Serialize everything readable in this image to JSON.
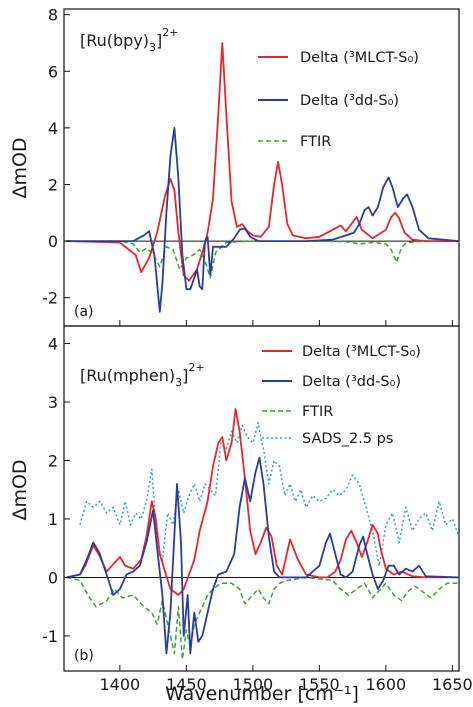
{
  "figure": {
    "xlabel": "Wavenumber [cm⁻¹]",
    "xticks": [
      "1400",
      "1450",
      "1500",
      "1550",
      "1600",
      "1650"
    ]
  },
  "chart_data": [
    {
      "type": "line",
      "panel_label": "(a)",
      "complex_label": "[Ru(bpy)₃]²⁺",
      "ylabel": "ΔmOD",
      "xlim": [
        1358,
        1655
      ],
      "ylim": [
        -3,
        8.2
      ],
      "yticks": [
        "-2",
        "0",
        "2",
        "4",
        "6",
        "8"
      ],
      "zero_line": true,
      "legend_position": "top-right",
      "series": [
        {
          "name": "Delta (³MLCT-S₀)",
          "color": "#e8262a",
          "style": "solid",
          "x": [
            1360,
            1400,
            1412,
            1416,
            1422,
            1428,
            1434,
            1438,
            1441,
            1444,
            1448,
            1452,
            1458,
            1462,
            1466,
            1470,
            1474,
            1477,
            1480,
            1484,
            1488,
            1492,
            1496,
            1500,
            1506,
            1512,
            1516,
            1519,
            1522,
            1526,
            1530,
            1540,
            1550,
            1560,
            1566,
            1570,
            1574,
            1578,
            1582,
            1590,
            1600,
            1604,
            1607,
            1610,
            1614,
            1620,
            1630,
            1655
          ],
          "y": [
            0,
            -0.05,
            -0.5,
            -1.1,
            -0.6,
            0.3,
            1.6,
            2.2,
            1.8,
            0.3,
            -1.2,
            -1.4,
            -1.0,
            -0.4,
            0.3,
            1.5,
            4.5,
            7.0,
            4.5,
            1.4,
            0.5,
            0.6,
            0.35,
            0.2,
            0.15,
            0.5,
            2.0,
            2.8,
            2.0,
            0.6,
            0.2,
            0.1,
            0.15,
            0.4,
            0.55,
            0.35,
            0.6,
            0.85,
            0.4,
            0.1,
            0.4,
            0.85,
            1.0,
            0.8,
            0.3,
            0.05,
            0,
            0
          ]
        },
        {
          "name": "Delta (³dd-S₀)",
          "color": "#2b3d9c",
          "style": "solid",
          "x": [
            1360,
            1410,
            1418,
            1422,
            1426,
            1430,
            1432,
            1435,
            1438,
            1441,
            1444,
            1447,
            1450,
            1453,
            1456,
            1458,
            1460,
            1462,
            1464,
            1466,
            1468,
            1470,
            1480,
            1486,
            1490,
            1494,
            1498,
            1504,
            1540,
            1560,
            1570,
            1576,
            1580,
            1584,
            1587,
            1590,
            1594,
            1598,
            1602,
            1605,
            1609,
            1613,
            1616,
            1620,
            1625,
            1632,
            1655
          ],
          "y": [
            0,
            0,
            0.2,
            0.35,
            -0.5,
            -2.5,
            -1.5,
            1.0,
            3.0,
            4.0,
            2.2,
            -0.5,
            -1.7,
            -1.7,
            -1.3,
            -1.0,
            -1.6,
            -1.7,
            0,
            0.15,
            -1.2,
            -0.2,
            -0.2,
            0.1,
            0.4,
            0.45,
            0.15,
            0,
            0,
            0.05,
            0.2,
            0.3,
            0.6,
            1.1,
            1.2,
            0.9,
            1.2,
            1.9,
            2.25,
            1.9,
            1.2,
            1.5,
            1.65,
            1.2,
            0.4,
            0.1,
            0
          ]
        },
        {
          "name": "FTIR",
          "color": "#3aa535",
          "style": "dashed",
          "x": [
            1360,
            1400,
            1410,
            1415,
            1420,
            1425,
            1430,
            1435,
            1440,
            1445,
            1450,
            1455,
            1460,
            1464,
            1468,
            1472,
            1480,
            1490,
            1500,
            1540,
            1570,
            1580,
            1590,
            1600,
            1604,
            1608,
            1612,
            1616,
            1630,
            1655
          ],
          "y": [
            0,
            0,
            -0.1,
            -0.4,
            -0.25,
            -0.45,
            -0.9,
            -0.2,
            -0.3,
            -1.0,
            -0.6,
            -0.5,
            -0.3,
            -0.7,
            -1.3,
            -0.4,
            -0.05,
            -0.02,
            0,
            0,
            -0.02,
            -0.1,
            -0.05,
            -0.1,
            -0.3,
            -0.75,
            -0.2,
            -0.05,
            0,
            0
          ]
        }
      ]
    },
    {
      "type": "line",
      "panel_label": "(b)",
      "complex_label": "[Ru(mphen)₃]²⁺",
      "ylabel": "ΔmOD",
      "xlim": [
        1358,
        1655
      ],
      "ylim": [
        -1.6,
        4.3
      ],
      "yticks": [
        "-1",
        "0",
        "1",
        "2",
        "3",
        "4"
      ],
      "zero_line": true,
      "legend_position": "top-right",
      "series": [
        {
          "name": "Delta (³MLCT-S₀)",
          "color": "#e8262a",
          "style": "solid",
          "x": [
            1360,
            1370,
            1374,
            1380,
            1384,
            1390,
            1396,
            1400,
            1404,
            1410,
            1416,
            1420,
            1424,
            1427,
            1430,
            1434,
            1438,
            1444,
            1448,
            1452,
            1456,
            1460,
            1466,
            1470,
            1474,
            1477,
            1480,
            1484,
            1487,
            1490,
            1494,
            1498,
            1502,
            1506,
            1510,
            1514,
            1518,
            1522,
            1528,
            1534,
            1540,
            1550,
            1556,
            1562,
            1566,
            1570,
            1574,
            1578,
            1582,
            1586,
            1590,
            1594,
            1596,
            1600,
            1606,
            1612,
            1620,
            1630,
            1655
          ],
          "y": [
            0,
            0.05,
            0.2,
            0.55,
            0.4,
            0.1,
            0.25,
            0.35,
            0.2,
            0.15,
            0.3,
            0.7,
            1.3,
            1.0,
            0.4,
            0.1,
            -0.2,
            -0.3,
            -0.2,
            0.05,
            0.3,
            0.8,
            1.3,
            1.9,
            2.3,
            2.4,
            2.0,
            2.3,
            2.88,
            2.5,
            1.7,
            0.8,
            0.4,
            0.6,
            0.85,
            0.7,
            0.2,
            0.05,
            0.65,
            0.3,
            0.05,
            0,
            0,
            0.1,
            0.3,
            0.65,
            0.8,
            0.6,
            0.35,
            0.6,
            0.9,
            0.75,
            0.5,
            0.15,
            0.05,
            0.1,
            0.02,
            0,
            0
          ]
        },
        {
          "name": "Delta (³dd-S₀)",
          "color": "#2b3d9c",
          "style": "solid",
          "x": [
            1360,
            1370,
            1375,
            1380,
            1385,
            1390,
            1395,
            1400,
            1405,
            1410,
            1415,
            1420,
            1425,
            1428,
            1432,
            1435,
            1438,
            1440,
            1443,
            1446,
            1448,
            1451,
            1453,
            1456,
            1459,
            1462,
            1466,
            1470,
            1474,
            1480,
            1486,
            1490,
            1494,
            1498,
            1502,
            1505,
            1508,
            1512,
            1516,
            1520,
            1530,
            1540,
            1550,
            1555,
            1558,
            1562,
            1566,
            1570,
            1575,
            1580,
            1583,
            1586,
            1590,
            1594,
            1598,
            1602,
            1606,
            1610,
            1615,
            1620,
            1625,
            1630,
            1655
          ],
          "y": [
            0,
            0.05,
            0.3,
            0.6,
            0.4,
            0.05,
            -0.3,
            -0.2,
            0.05,
            0.1,
            0.2,
            0.6,
            1.15,
            0.5,
            -0.3,
            -1.3,
            -0.6,
            0.3,
            1.6,
            0.6,
            -1.0,
            -0.3,
            -1.3,
            -0.6,
            -1.1,
            -1.0,
            -0.6,
            -0.2,
            0.05,
            0.1,
            0.4,
            1.2,
            1.7,
            1.3,
            1.8,
            2.05,
            1.6,
            0.7,
            0.1,
            0,
            0,
            0,
            0.2,
            0.6,
            0.75,
            0.4,
            0.05,
            0,
            0.1,
            0.55,
            0.7,
            0.4,
            0.05,
            -0.2,
            -0.05,
            0.2,
            0.2,
            0.05,
            0.15,
            0.1,
            0.2,
            0.02,
            0
          ]
        },
        {
          "name": "FTIR",
          "color": "#3aa535",
          "style": "dashed",
          "x": [
            1360,
            1370,
            1376,
            1382,
            1390,
            1396,
            1402,
            1410,
            1418,
            1424,
            1428,
            1432,
            1438,
            1441,
            1444,
            1447,
            1450,
            1453,
            1456,
            1460,
            1466,
            1470,
            1476,
            1484,
            1490,
            1494,
            1500,
            1504,
            1508,
            1512,
            1516,
            1520,
            1526,
            1540,
            1560,
            1566,
            1572,
            1578,
            1584,
            1590,
            1596,
            1600,
            1606,
            1612,
            1616,
            1622,
            1628,
            1634,
            1640,
            1646,
            1655
          ],
          "y": [
            0,
            -0.05,
            -0.3,
            -0.5,
            -0.4,
            -0.2,
            -0.35,
            -0.3,
            -0.5,
            -0.6,
            -0.8,
            -0.4,
            -1.0,
            -1.3,
            -0.5,
            -1.4,
            -0.9,
            -1.2,
            -0.8,
            -0.6,
            -0.3,
            -0.2,
            -0.1,
            -0.1,
            -0.2,
            -0.45,
            -0.3,
            -0.2,
            -0.35,
            -0.45,
            -0.2,
            -0.1,
            -0.05,
            0,
            -0.05,
            -0.2,
            -0.3,
            -0.2,
            -0.1,
            -0.35,
            -0.2,
            -0.1,
            -0.3,
            -0.4,
            -0.25,
            -0.15,
            -0.25,
            -0.35,
            -0.2,
            -0.1,
            -0.1
          ]
        },
        {
          "name": "SADS_2.5 ps",
          "color": "#2f9fd6",
          "style": "dotted",
          "x": [
            1370,
            1375,
            1380,
            1385,
            1390,
            1395,
            1400,
            1404,
            1408,
            1412,
            1416,
            1420,
            1424,
            1428,
            1432,
            1436,
            1440,
            1444,
            1448,
            1452,
            1456,
            1460,
            1464,
            1468,
            1472,
            1476,
            1480,
            1484,
            1488,
            1492,
            1496,
            1500,
            1504,
            1506,
            1508,
            1512,
            1516,
            1520,
            1524,
            1528,
            1532,
            1536,
            1540,
            1545,
            1550,
            1555,
            1560,
            1565,
            1570,
            1575,
            1580,
            1585,
            1590,
            1595,
            1600,
            1605,
            1610,
            1615,
            1620,
            1625,
            1630,
            1635,
            1640,
            1645,
            1650,
            1655
          ],
          "y": [
            0.9,
            1.3,
            1.2,
            1.3,
            1.1,
            1.2,
            0.9,
            1.3,
            0.9,
            1.1,
            1.0,
            1.3,
            1.85,
            0.6,
            0.3,
            1.1,
            0.9,
            1.5,
            1.1,
            1.4,
            1.6,
            1.3,
            1.6,
            1.5,
            1.4,
            2.3,
            2.2,
            2.5,
            2.3,
            2.6,
            2.4,
            2.3,
            2.65,
            2.4,
            2.2,
            1.6,
            2.0,
            1.9,
            1.4,
            1.6,
            1.3,
            1.5,
            1.2,
            1.4,
            1.3,
            1.35,
            1.5,
            1.4,
            1.5,
            1.75,
            1.6,
            1.2,
            0.8,
            0.2,
            0.9,
            1.1,
            0.6,
            1.2,
            0.8,
            1.0,
            1.1,
            0.8,
            1.3,
            0.9,
            1.0,
            0.7
          ]
        }
      ]
    }
  ]
}
